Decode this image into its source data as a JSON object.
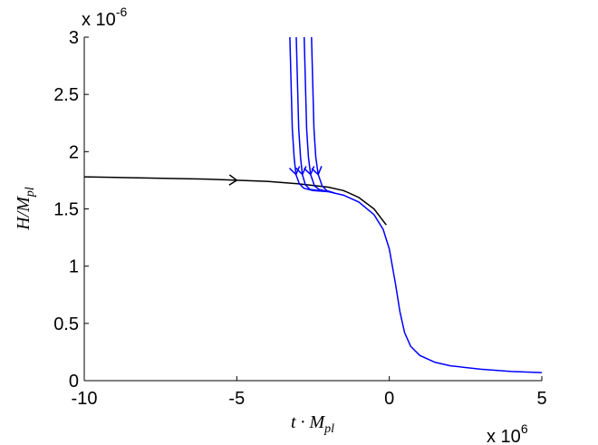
{
  "chart_data": {
    "type": "line",
    "xlabel": {
      "main": "t · M",
      "sub": "pl"
    },
    "ylabel": {
      "main": "H/M",
      "sub": "pl"
    },
    "x_exponent": {
      "base": "x 10",
      "power": "6"
    },
    "y_exponent": {
      "base": "x 10",
      "power": "-6"
    },
    "xlim": [
      -10,
      5
    ],
    "xticks": [
      -10,
      -5,
      0,
      5
    ],
    "ylim": [
      0,
      3
    ],
    "yticks": [
      0,
      0.5,
      1,
      1.5,
      2,
      2.5,
      3
    ],
    "series": [
      {
        "color": "#000000",
        "x": [
          -10,
          -8,
          -6,
          -5,
          -4,
          -3,
          -2,
          -1.5,
          -1,
          -0.5,
          -0.1
        ],
        "y": [
          1.78,
          1.77,
          1.76,
          1.75,
          1.74,
          1.72,
          1.69,
          1.66,
          1.6,
          1.5,
          1.36
        ]
      },
      {
        "color": "#0000ff",
        "x": [
          -2.5,
          -2,
          -1.5,
          -1,
          -0.5,
          -0.2,
          0,
          0.2,
          0.35,
          0.5,
          0.7,
          1,
          1.5,
          2,
          3,
          4,
          5
        ],
        "y": [
          1.66,
          1.65,
          1.62,
          1.56,
          1.45,
          1.32,
          1.15,
          0.85,
          0.6,
          0.42,
          0.3,
          0.22,
          0.16,
          0.13,
          0.1,
          0.08,
          0.07
        ]
      },
      {
        "color": "#0000ff",
        "x": [
          -3.26,
          -3.22,
          -3.18,
          -3.12,
          -3.06,
          -2.95,
          -2.8,
          -2.5
        ],
        "y": [
          3,
          2.6,
          2.2,
          1.95,
          1.8,
          1.72,
          1.68,
          1.66
        ]
      },
      {
        "color": "#0000ff",
        "x": [
          -3.05,
          -3.01,
          -2.97,
          -2.91,
          -2.85,
          -2.75,
          -2.6,
          -2.3
        ],
        "y": [
          3,
          2.6,
          2.2,
          1.95,
          1.8,
          1.71,
          1.67,
          1.66
        ]
      },
      {
        "color": "#0000ff",
        "x": [
          -2.79,
          -2.75,
          -2.71,
          -2.65,
          -2.58,
          -2.45,
          -2.3,
          -2.0
        ],
        "y": [
          3,
          2.6,
          2.2,
          1.95,
          1.8,
          1.7,
          1.67,
          1.65
        ]
      },
      {
        "color": "#0000ff",
        "x": [
          -2.55,
          -2.51,
          -2.47,
          -2.41,
          -2.33,
          -2.2,
          -2.05,
          -1.8
        ],
        "y": [
          3,
          2.6,
          2.2,
          1.95,
          1.8,
          1.7,
          1.66,
          1.64
        ]
      }
    ]
  }
}
